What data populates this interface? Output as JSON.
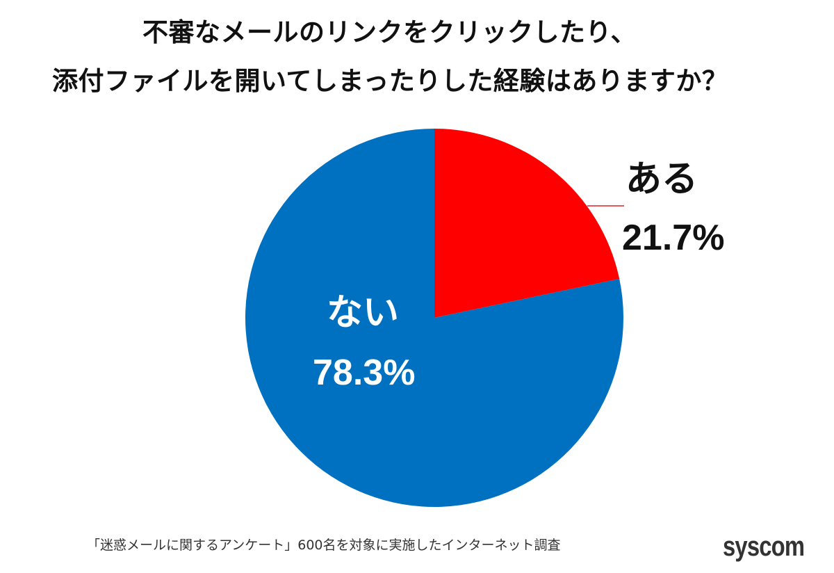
{
  "chart_data": {
    "type": "pie",
    "title": "不審なメールのリンクをクリックしたり、添付ファイルを開いてしまったりした経験はありますか？",
    "title_lines": [
      "不審なメールのリンクをクリックしたり、",
      "添付ファイルを開いてしまったりした経験はありますか？"
    ],
    "categories": [
      "ある",
      "ない"
    ],
    "values": [
      21.7,
      78.3
    ],
    "unit": "%",
    "slices": [
      {
        "label": "ある",
        "value": 21.7,
        "display": "21.7%",
        "color": "#FF0000"
      },
      {
        "label": "ない",
        "value": 78.3,
        "display": "78.3%",
        "color": "#0070C0"
      }
    ],
    "start_angle": "12 o'clock, clockwise",
    "legend": "none (direct labels)",
    "footnote": "「迷惑メールに関するアンケート」600名を対象に実施したインターネット調査"
  },
  "brand": {
    "name": "syscom"
  },
  "colors": {
    "aru": "#FF0000",
    "nai": "#0070C0",
    "leader_line": "#E02020",
    "text": "#111111"
  }
}
